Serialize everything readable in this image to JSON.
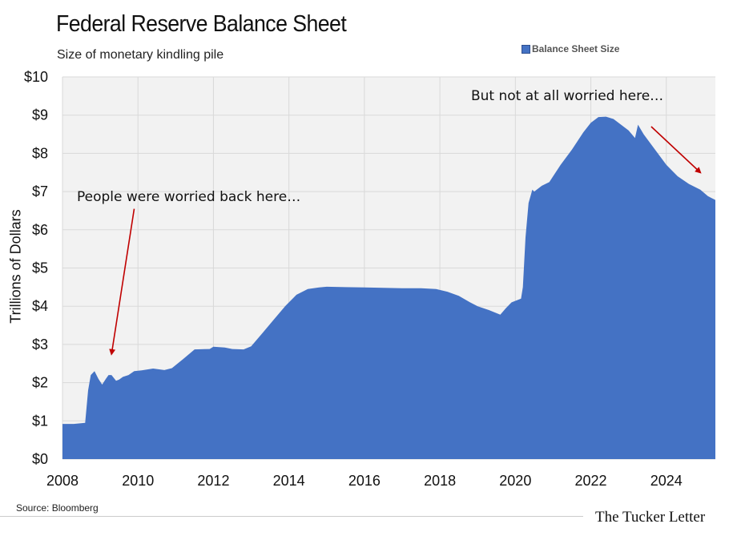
{
  "header": {
    "title": "Federal Reserve Balance Sheet",
    "subtitle": "Size of monetary kindling pile"
  },
  "footer": {
    "source": "Source: Bloomberg",
    "brand": "The Tucker Letter"
  },
  "colors": {
    "area": "#4472c4",
    "plot_bg": "#f2f2f2",
    "grid": "#d9d9d9",
    "arrow": "#c00000"
  },
  "chart_data": {
    "type": "area",
    "title": "Federal Reserve Balance Sheet",
    "subtitle": "Size of monetary kindling pile",
    "xlabel": "",
    "ylabel": "Trillions of Dollars",
    "xlim": [
      2008,
      2025.3
    ],
    "ylim": [
      0,
      10
    ],
    "x_ticks": [
      2008,
      2010,
      2012,
      2014,
      2016,
      2018,
      2020,
      2022,
      2024
    ],
    "x_tick_labels": [
      "2008",
      "2010",
      "2012",
      "2014",
      "2016",
      "2018",
      "2020",
      "2022",
      "2024"
    ],
    "y_ticks": [
      0,
      1,
      2,
      3,
      4,
      5,
      6,
      7,
      8,
      9,
      10
    ],
    "y_tick_labels": [
      "$0",
      "$1",
      "$2",
      "$3",
      "$4",
      "$5",
      "$6",
      "$7",
      "$8",
      "$9",
      "$10"
    ],
    "grid": true,
    "legend": {
      "position": "top-right",
      "entries": [
        "Balance Sheet Size"
      ]
    },
    "series": [
      {
        "name": "Balance Sheet Size",
        "x": [
          2008.0,
          2008.3,
          2008.6,
          2008.68,
          2008.75,
          2008.85,
          2008.95,
          2009.05,
          2009.15,
          2009.22,
          2009.3,
          2009.42,
          2009.5,
          2009.6,
          2009.75,
          2009.9,
          2010.1,
          2010.4,
          2010.7,
          2010.9,
          2011.2,
          2011.5,
          2011.9,
          2012.0,
          2012.3,
          2012.5,
          2012.8,
          2013.0,
          2013.3,
          2013.6,
          2013.9,
          2014.2,
          2014.5,
          2014.8,
          2015.0,
          2015.5,
          2016.0,
          2016.5,
          2017.0,
          2017.5,
          2017.9,
          2018.2,
          2018.5,
          2018.8,
          2019.0,
          2019.3,
          2019.6,
          2019.75,
          2019.9,
          2020.15,
          2020.2,
          2020.27,
          2020.35,
          2020.45,
          2020.5,
          2020.7,
          2020.9,
          2021.2,
          2021.5,
          2021.8,
          2022.0,
          2022.2,
          2022.4,
          2022.6,
          2022.8,
          2023.0,
          2023.17,
          2023.25,
          2023.4,
          2023.7,
          2024.0,
          2024.3,
          2024.6,
          2024.9,
          2025.1,
          2025.3
        ],
        "values": [
          0.92,
          0.92,
          0.95,
          1.8,
          2.2,
          2.3,
          2.1,
          1.95,
          2.1,
          2.2,
          2.2,
          2.05,
          2.08,
          2.15,
          2.2,
          2.3,
          2.32,
          2.37,
          2.33,
          2.38,
          2.62,
          2.87,
          2.88,
          2.94,
          2.92,
          2.88,
          2.87,
          2.95,
          3.3,
          3.65,
          4.0,
          4.3,
          4.45,
          4.49,
          4.51,
          4.5,
          4.49,
          4.48,
          4.47,
          4.47,
          4.45,
          4.38,
          4.27,
          4.1,
          4.0,
          3.9,
          3.78,
          3.95,
          4.1,
          4.2,
          4.5,
          5.8,
          6.7,
          7.05,
          7.0,
          7.15,
          7.25,
          7.7,
          8.1,
          8.55,
          8.8,
          8.95,
          8.96,
          8.9,
          8.75,
          8.6,
          8.4,
          8.75,
          8.5,
          8.1,
          7.7,
          7.4,
          7.2,
          7.05,
          6.88,
          6.78
        ]
      }
    ],
    "annotations": [
      {
        "text": "People were worried back here…",
        "arrow_from": [
          2009.9,
          6.55
        ],
        "arrow_to": [
          2009.3,
          2.75
        ]
      },
      {
        "text": "But not at all worried here…",
        "arrow_from": [
          2023.6,
          8.7
        ],
        "arrow_to": [
          2024.9,
          7.5
        ]
      }
    ]
  }
}
